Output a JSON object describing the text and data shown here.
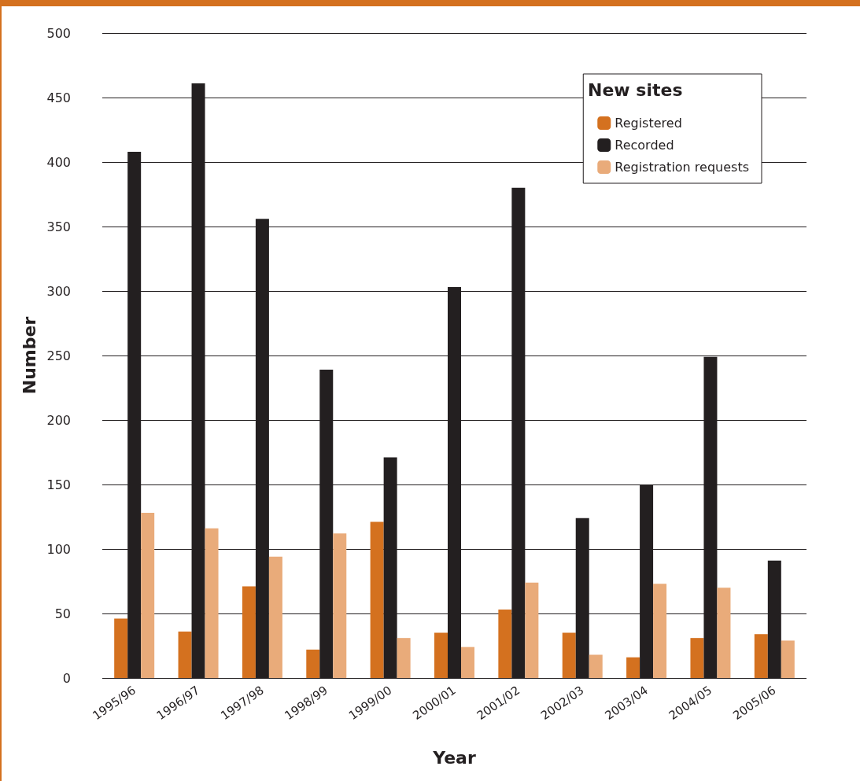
{
  "chart_data": {
    "type": "bar",
    "xlabel": "Year",
    "ylabel": "Number",
    "legend_title": "New sites",
    "categories": [
      "1995/96",
      "1996/97",
      "1997/98",
      "1998/99",
      "1999/00",
      "2000/01",
      "2001/02",
      "2002/03",
      "2003/04",
      "2004/05",
      "2005/06"
    ],
    "series": [
      {
        "name": "Registered",
        "color": "#d4711f",
        "values": [
          46,
          36,
          71,
          22,
          121,
          35,
          53,
          35,
          16,
          31,
          34
        ]
      },
      {
        "name": "Recorded",
        "color": "#231f20",
        "values": [
          408,
          461,
          356,
          239,
          171,
          303,
          380,
          124,
          150,
          249,
          91
        ]
      },
      {
        "name": "Registration requests",
        "color": "#e9ab7a",
        "values": [
          128,
          116,
          94,
          112,
          31,
          24,
          74,
          18,
          73,
          70,
          29
        ]
      }
    ],
    "ylim": [
      0,
      500
    ],
    "yticks": [
      0,
      50,
      100,
      150,
      200,
      250,
      300,
      350,
      400,
      450,
      500
    ],
    "grid": "y",
    "legend": "top right"
  }
}
